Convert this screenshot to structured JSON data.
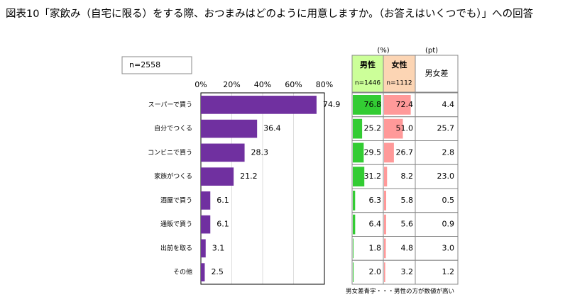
{
  "title": "図表10「家飲み（自宅に限る）をする際、おつまみはどのように用意しますか。（お答えはいくつでも）」への回答",
  "sample_label": "n=2558",
  "chart_data": {
    "type": "hbar",
    "categories": [
      "スーパーで買う",
      "自分でつくる",
      "コンビニで買う",
      "家族がつくる",
      "酒屋で買う",
      "通販で買う",
      "出前を取る",
      "その他"
    ],
    "values": [
      74.9,
      36.4,
      28.3,
      21.2,
      6.1,
      6.1,
      3.1,
      2.5
    ],
    "color": "#7030a0",
    "xlim": [
      0,
      80
    ],
    "xticks": [
      {
        "value": 0,
        "label": "0%"
      },
      {
        "value": 20,
        "label": "20%"
      },
      {
        "value": 40,
        "label": "40%"
      },
      {
        "value": 60,
        "label": "60%"
      },
      {
        "value": 80,
        "label": "80%"
      }
    ],
    "grid": true
  },
  "table": {
    "unit_left": "(%)",
    "unit_right": "(pt)",
    "male": {
      "name": "男性",
      "n": "n=1446",
      "color": "#33cc33",
      "header_color": "#ccff99",
      "values": [
        76.8,
        25.2,
        29.5,
        31.2,
        6.3,
        6.4,
        1.8,
        2.0
      ],
      "value_labels": [
        "76.8",
        "25.2",
        "29.5",
        "31.2",
        "6.3",
        "6.4",
        "1.8",
        "2.0"
      ]
    },
    "female": {
      "name": "女性",
      "n": "n=1112",
      "color": "#ff9999",
      "header_color": "#fcd5b4",
      "values": [
        72.4,
        51.0,
        26.7,
        8.2,
        5.8,
        5.6,
        4.8,
        3.2
      ],
      "value_labels": [
        "72.4",
        "51.0",
        "26.7",
        "8.2",
        "5.8",
        "5.6",
        "4.8",
        "3.2"
      ]
    },
    "diff": {
      "name": "男女差",
      "values": [
        4.4,
        25.7,
        2.8,
        23.0,
        0.5,
        0.9,
        3.0,
        1.2
      ],
      "value_labels": [
        "4.4",
        "25.7",
        "2.8",
        "23.0",
        "0.5",
        "0.9",
        "3.0",
        "1.2"
      ],
      "male_higher_color": "#0070c0",
      "female_higher_color": "#ff0000"
    },
    "note": "男女差青字・・・男性の方が数値が高い"
  }
}
